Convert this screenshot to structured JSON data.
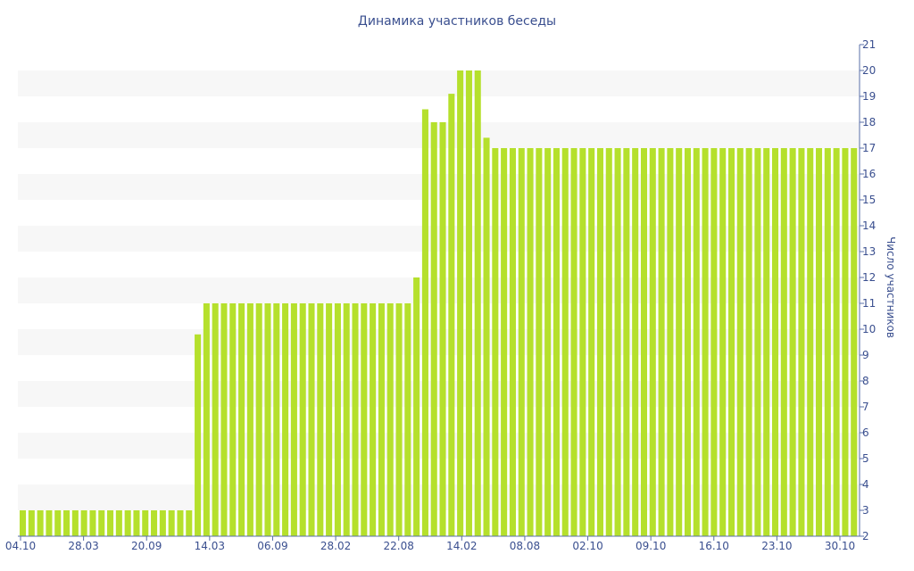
{
  "chart_data": {
    "type": "bar",
    "title": "Динамика участников беседы",
    "xlabel": "",
    "ylabel": "Число участников",
    "ylim": [
      2,
      21
    ],
    "y_ticks": [
      2,
      3,
      4,
      5,
      6,
      7,
      8,
      9,
      10,
      11,
      12,
      13,
      14,
      15,
      16,
      17,
      18,
      19,
      20,
      21
    ],
    "y_axis_position": "right",
    "grid": "horizontal alternating bands",
    "legend": "none",
    "x_tick_labels": [
      "04.10",
      "28.03",
      "20.09",
      "14.03",
      "06.09",
      "28.02",
      "22.08",
      "14.02",
      "08.08",
      "02.10",
      "09.10",
      "16.10",
      "23.10",
      "30.10"
    ],
    "bar_color": "#b5e02c",
    "band_color": "#f7f7f7",
    "text_color": "#3a4f8f",
    "values": [
      3,
      3,
      3,
      3,
      3,
      3,
      3,
      3,
      3,
      3,
      3,
      3,
      3,
      3,
      3,
      3,
      3,
      3,
      3,
      3,
      9.8,
      11,
      11,
      11,
      11,
      11,
      11,
      11,
      11,
      11,
      11,
      11,
      11,
      11,
      11,
      11,
      11,
      11,
      11,
      11,
      11,
      11,
      11,
      11,
      11,
      12,
      18.5,
      18,
      18,
      19.1,
      20,
      20,
      20,
      17.4,
      17,
      17,
      17,
      17,
      17,
      17,
      17,
      17,
      17,
      17,
      17,
      17,
      17,
      17,
      17,
      17,
      17,
      17,
      17,
      17,
      17,
      17,
      17,
      17,
      17,
      17,
      17,
      17,
      17,
      17,
      17,
      17,
      17,
      17,
      17,
      17,
      17,
      17,
      17,
      17,
      17,
      17
    ]
  }
}
